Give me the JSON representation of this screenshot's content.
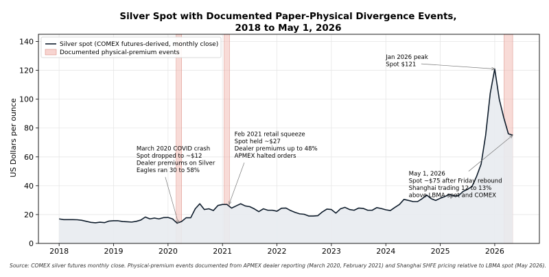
{
  "chart_data": {
    "type": "line",
    "title_lines": [
      "Silver Spot with Documented Paper-Physical Divergence Events,",
      "2018 to May 1, 2026"
    ],
    "ylabel": "US Dollars per ounce",
    "xlabel": "",
    "xlim": [
      2017.62,
      2026.82
    ],
    "ylim": [
      0,
      145
    ],
    "x_ticks": [
      2018,
      2019,
      2020,
      2021,
      2022,
      2023,
      2024,
      2025,
      2026
    ],
    "y_ticks": [
      0,
      20,
      40,
      60,
      80,
      100,
      120,
      140
    ],
    "grid": true,
    "legend": {
      "placement": "top-left",
      "entries": [
        {
          "label": "Silver spot (COMEX futures-derived, monthly close)",
          "style": "line",
          "color": "#0d1b2a"
        },
        {
          "label": "Documented physical-premium events",
          "style": "patch",
          "color": "#f2b8b0"
        }
      ]
    },
    "series": [
      {
        "name": "Silver spot (COMEX futures-derived, monthly close)",
        "color": "#0d1b2a",
        "fill": "#e8ebf0",
        "x": [
          2018.0,
          2018.083,
          2018.167,
          2018.25,
          2018.333,
          2018.417,
          2018.5,
          2018.583,
          2018.667,
          2018.75,
          2018.833,
          2018.917,
          2019.0,
          2019.083,
          2019.167,
          2019.25,
          2019.333,
          2019.417,
          2019.5,
          2019.583,
          2019.667,
          2019.75,
          2019.833,
          2019.917,
          2020.0,
          2020.083,
          2020.167,
          2020.25,
          2020.333,
          2020.417,
          2020.5,
          2020.583,
          2020.667,
          2020.75,
          2020.833,
          2020.917,
          2021.0,
          2021.083,
          2021.167,
          2021.25,
          2021.333,
          2021.417,
          2021.5,
          2021.583,
          2021.667,
          2021.75,
          2021.833,
          2021.917,
          2022.0,
          2022.083,
          2022.167,
          2022.25,
          2022.333,
          2022.417,
          2022.5,
          2022.583,
          2022.667,
          2022.75,
          2022.833,
          2022.917,
          2023.0,
          2023.083,
          2023.167,
          2023.25,
          2023.333,
          2023.417,
          2023.5,
          2023.583,
          2023.667,
          2023.75,
          2023.833,
          2023.917,
          2024.0,
          2024.083,
          2024.167,
          2024.25,
          2024.333,
          2024.417,
          2024.5,
          2024.583,
          2024.667,
          2024.75,
          2024.833,
          2024.917,
          2025.0,
          2025.083,
          2025.167,
          2025.25,
          2025.333,
          2025.417,
          2025.5,
          2025.583,
          2025.667,
          2025.75,
          2025.833,
          2025.917,
          2026.0,
          2026.083,
          2026.167,
          2026.25,
          2026.333
        ],
        "y": [
          17.0,
          16.5,
          16.5,
          16.5,
          16.4,
          16.0,
          15.3,
          14.6,
          14.3,
          14.7,
          14.4,
          15.5,
          15.7,
          15.7,
          15.2,
          15.0,
          14.8,
          15.3,
          16.2,
          18.3,
          17.0,
          17.6,
          17.0,
          17.9,
          18.0,
          17.0,
          14.0,
          15.2,
          17.8,
          17.8,
          24.0,
          27.5,
          23.5,
          24.0,
          22.8,
          26.3,
          27.0,
          27.0,
          24.5,
          26.0,
          27.5,
          26.0,
          25.5,
          24.0,
          22.0,
          24.0,
          23.0,
          23.0,
          22.3,
          24.4,
          24.5,
          22.8,
          21.5,
          20.5,
          20.2,
          19.0,
          19.0,
          19.2,
          21.8,
          23.8,
          23.5,
          21.0,
          24.0,
          25.0,
          23.5,
          23.0,
          24.5,
          24.3,
          23.0,
          23.0,
          24.8,
          24.2,
          23.3,
          22.8,
          25.0,
          27.0,
          30.5,
          29.8,
          29.0,
          29.0,
          31.0,
          33.5,
          31.0,
          29.8,
          31.3,
          32.5,
          34.0,
          33.0,
          33.0,
          36.0,
          37.5,
          39.5,
          46.5,
          55.0,
          75.0,
          104.0,
          121.0,
          100.0,
          87.0,
          76.0,
          75.0
        ]
      }
    ],
    "events": [
      {
        "label": "March 2020",
        "x_start": 2020.15,
        "x_end": 2020.25
      },
      {
        "label": "February 2021",
        "x_start": 2021.03,
        "x_end": 2021.13
      },
      {
        "label": "May 2026",
        "x_start": 2026.17,
        "x_end": 2026.33
      }
    ],
    "annotations": [
      {
        "lines": [
          "March 2020 COVID crash",
          "Spot dropped to ~$12",
          "Dealer premiums on Silver",
          "Eagles ran 30 to 58%"
        ],
        "point": [
          2020.19,
          14.0
        ],
        "text_at": [
          2019.42,
          64.5
        ]
      },
      {
        "lines": [
          "Feb 2021 retail squeeze",
          "Spot held ~$27",
          "Dealer premiums up to 48%",
          "APMEX halted orders"
        ],
        "point": [
          2021.12,
          27.0
        ],
        "text_at": [
          2021.22,
          74.5
        ]
      },
      {
        "lines": [
          "Jan 2026 peak",
          "Spot $121"
        ],
        "point": [
          2026.0,
          121.0
        ],
        "text_at": [
          2024.0,
          128.0
        ]
      },
      {
        "lines": [
          "May 1, 2026",
          "Spot ~$75 after Friday rebound",
          "Shanghai trading 12 to 13%",
          "above LBMA spot and COMEX"
        ],
        "point": [
          2026.33,
          75.0
        ],
        "text_at": [
          2024.42,
          47.0
        ]
      }
    ]
  },
  "source_note": "Source: COMEX silver futures monthly close. Physical-premium events documented from APMEX dealer reporting (March 2020, February 2021) and Shanghai SHFE pricing relative to LBMA spot (May 2026)."
}
